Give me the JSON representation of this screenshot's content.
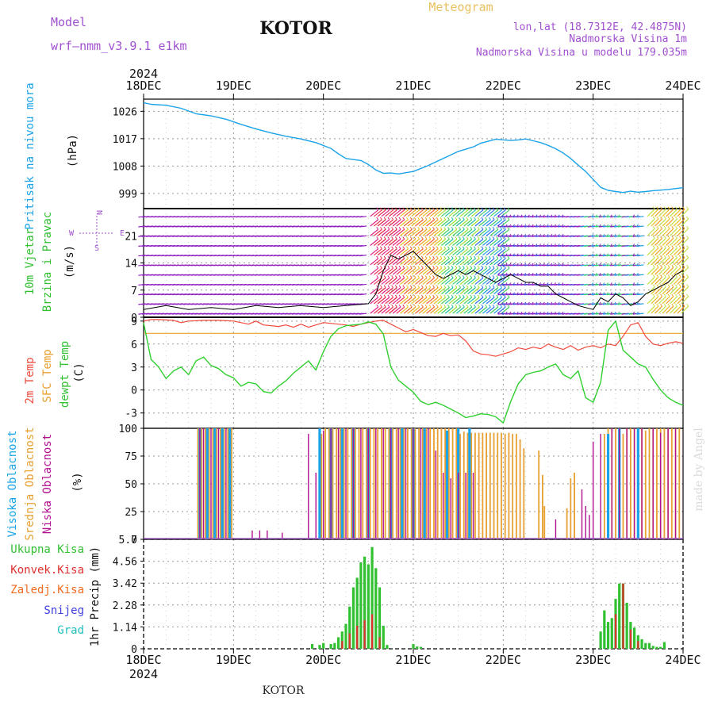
{
  "header": {
    "model_label": "Model",
    "model_name": "wrf—nmm_v3.9.1 e1km",
    "station_title": "KOTOR",
    "meteogram_label": "Meteogram",
    "lonlat": "lon,lat (18.7312E, 42.4875N)",
    "elevation": "Nadmorska Visina 1m",
    "model_elevation": "Nadmorska Visina u modelu 179.035m",
    "credit": "made by Angel",
    "footer_station": "KOTOR"
  },
  "time_axis": {
    "year": "2024",
    "ticks": [
      "18DEC",
      "19DEC",
      "20DEC",
      "21DEC",
      "22DEC",
      "23DEC",
      "24DEC"
    ]
  },
  "colors": {
    "pressure": "#1aa3e8",
    "temp2m": "#f04a3c",
    "sfc_temp": "#e8a030",
    "dewpt": "#30d030",
    "high_cloud": "#1aa3e8",
    "mid_cloud": "#e8a030",
    "low_cloud": "#b01090",
    "total_precip": "#30c030",
    "conv_precip": "#e03030",
    "frz_precip": "#f06a20",
    "snow": "#4040e0",
    "graupel": "#20c0c0"
  },
  "compass": {
    "n": "N",
    "s": "S",
    "e": "E",
    "w": "W"
  },
  "chart_data": [
    {
      "type": "line",
      "panel": "pressure",
      "ylabel": "Pritisak na nivou mora",
      "unit": "(hPa)",
      "yticks": [
        "1026",
        "1017",
        "1008",
        "999"
      ],
      "ylim": [
        994,
        1030
      ],
      "xlim": [
        0,
        144
      ],
      "series": [
        {
          "name": "Pritisak na nivou mora",
          "x": [
            0,
            2,
            6,
            10,
            14,
            18,
            22,
            26,
            30,
            34,
            38,
            42,
            46,
            50,
            52,
            54,
            58,
            60,
            62,
            64,
            66,
            68,
            72,
            76,
            80,
            84,
            88,
            90,
            94,
            98,
            100,
            102,
            104,
            106,
            108,
            110,
            112,
            114,
            116,
            118,
            120,
            122,
            124,
            126,
            128,
            130,
            132,
            134,
            136,
            140,
            144
          ],
          "y": [
            1028.8,
            1028.3,
            1028,
            1027,
            1025.2,
            1024.5,
            1023.4,
            1021.7,
            1020.2,
            1018.9,
            1017.8,
            1016.9,
            1015.7,
            1013.8,
            1012,
            1010.5,
            1009.8,
            1008.5,
            1006.7,
            1005.6,
            1005.7,
            1005.4,
            1006.2,
            1008.2,
            1010.5,
            1012.8,
            1014.3,
            1015.5,
            1016.8,
            1016.4,
            1016.6,
            1016.9,
            1016.3,
            1015.7,
            1014.8,
            1013.7,
            1012.3,
            1010.5,
            1008.3,
            1006.2,
            1003.6,
            1001,
            1000,
            999.6,
            999.3,
            999.7,
            999.4,
            999.6,
            999.9,
            1000.3,
            1000.9
          ]
        }
      ]
    },
    {
      "type": "line",
      "panel": "wind",
      "ylabel": "10m Vjetar Brzina i Pravac",
      "unit": "(m/s)",
      "yticks": [
        "0",
        "7",
        "14",
        "21"
      ],
      "ylim": [
        0,
        28
      ],
      "xlim": [
        0,
        144
      ],
      "series": [
        {
          "name": "10m Vjetar",
          "x": [
            0,
            6,
            12,
            18,
            24,
            30,
            36,
            42,
            48,
            54,
            60,
            62,
            64,
            66,
            68,
            70,
            72,
            74,
            76,
            78,
            80,
            82,
            84,
            86,
            88,
            90,
            92,
            94,
            96,
            98,
            100,
            102,
            104,
            106,
            108,
            110,
            112,
            114,
            116,
            118,
            120,
            122,
            124,
            126,
            128,
            130,
            132,
            134,
            136,
            138,
            140,
            142,
            144
          ],
          "y": [
            2,
            3,
            2,
            2.5,
            2,
            3,
            2.5,
            3,
            2.5,
            3,
            3.5,
            6,
            12,
            16,
            15,
            16,
            17,
            15,
            13,
            11,
            10,
            11,
            12,
            11,
            12,
            11,
            10,
            9,
            10,
            11,
            10,
            9,
            9,
            8,
            8,
            6,
            5,
            4,
            3,
            2.5,
            2,
            5,
            4,
            6,
            5,
            3,
            4,
            6,
            7,
            8,
            9,
            11,
            12
          ]
        }
      ]
    },
    {
      "type": "line",
      "panel": "temperature",
      "ylabel": "2m Temp / SFC Temp / dewpt Temp",
      "unit": "(C)",
      "yticks": [
        "-3",
        "0",
        "3",
        "6",
        "9"
      ],
      "ylim": [
        -5,
        9.5
      ],
      "xlim": [
        0,
        144
      ],
      "series": [
        {
          "name": "2m Temp",
          "x": [
            0,
            2,
            4,
            8,
            10,
            12,
            16,
            20,
            24,
            28,
            30,
            32,
            36,
            38,
            40,
            42,
            44,
            46,
            48,
            50,
            52,
            54,
            56,
            58,
            60,
            62,
            64,
            66,
            68,
            70,
            72,
            74,
            76,
            78,
            80,
            82,
            84,
            86,
            88,
            90,
            92,
            94,
            96,
            98,
            100,
            102,
            104,
            106,
            108,
            110,
            112,
            114,
            116,
            118,
            120,
            122,
            124,
            126,
            128,
            130,
            132,
            134,
            136,
            138,
            140,
            142,
            144
          ],
          "y": [
            9,
            9.2,
            9.2,
            9.1,
            8.8,
            9,
            9.1,
            9.1,
            9,
            8.6,
            9,
            8.5,
            8.3,
            8.5,
            8.2,
            8.6,
            8.2,
            8.5,
            8.8,
            8.7,
            8.6,
            8.5,
            8.3,
            8.6,
            8.8,
            9,
            9.1,
            8.6,
            8.1,
            7.6,
            7.9,
            7.5,
            7.1,
            7,
            7.4,
            7.1,
            7.2,
            6.4,
            5.1,
            4.7,
            4.6,
            4.4,
            4.7,
            5,
            5.5,
            5.3,
            5.6,
            5.4,
            6,
            5.6,
            5.3,
            5.8,
            5.2,
            5.6,
            5.8,
            5.5,
            6,
            5.8,
            7,
            8.5,
            8.8,
            7,
            6,
            5.8,
            6.1,
            6.3,
            6.1
          ]
        },
        {
          "name": "SFC Temp",
          "x": [
            0,
            144
          ],
          "y": [
            7.4,
            7.4
          ]
        },
        {
          "name": "dewpt Temp",
          "x": [
            0,
            2,
            4,
            6,
            8,
            10,
            12,
            14,
            16,
            18,
            20,
            22,
            24,
            26,
            28,
            30,
            32,
            34,
            36,
            38,
            40,
            42,
            44,
            46,
            48,
            50,
            52,
            54,
            56,
            58,
            60,
            62,
            64,
            66,
            68,
            70,
            72,
            74,
            76,
            78,
            80,
            82,
            84,
            86,
            88,
            90,
            92,
            94,
            96,
            98,
            100,
            102,
            104,
            106,
            108,
            110,
            112,
            114,
            116,
            118,
            120,
            122,
            124,
            126,
            128,
            130,
            132,
            134,
            136,
            138,
            140,
            142,
            144
          ],
          "y": [
            8.8,
            4,
            3,
            1.5,
            2.5,
            3,
            2,
            3.8,
            4.3,
            3.2,
            2.8,
            2,
            1.6,
            0.5,
            1,
            0.8,
            -0.2,
            -0.4,
            0.5,
            1.2,
            2.2,
            3,
            3.8,
            2.6,
            5,
            7,
            8,
            8.4,
            8.5,
            8.6,
            8.9,
            8.6,
            7.3,
            3,
            1.3,
            0.5,
            -0.3,
            -1.5,
            -1.9,
            -1.6,
            -2,
            -2.5,
            -3,
            -3.6,
            -3.4,
            -3.1,
            -3.2,
            -3.5,
            -4.3,
            -1.5,
            0.8,
            2,
            2.3,
            2.5,
            3,
            3.4,
            2,
            1.5,
            2.5,
            -1,
            -1.6,
            1,
            7.8,
            9,
            5.2,
            4.3,
            3.4,
            3,
            1.4,
            0,
            -1,
            -1.6,
            -2
          ]
        }
      ]
    },
    {
      "type": "bar",
      "panel": "cloud",
      "ylabel": "Visoka Oblacnost / Srednja Oblacnost / Niska Oblacnost",
      "unit": "(%)",
      "yticks": [
        "0",
        "25",
        "50",
        "75",
        "100"
      ],
      "ylim": [
        0,
        100
      ],
      "xlim": [
        0,
        144
      ],
      "series": [
        {
          "name": "Visoka Oblacnost",
          "x": [
            15,
            17,
            19,
            21,
            23,
            47,
            50,
            53,
            56,
            60,
            66,
            69,
            72,
            75,
            81,
            84,
            87,
            124,
            127,
            132
          ],
          "values": [
            100,
            100,
            100,
            100,
            100,
            100,
            100,
            100,
            100,
            100,
            100,
            100,
            100,
            100,
            98,
            100,
            100,
            95,
            100,
            100
          ]
        },
        {
          "name": "Srednja Oblacnost",
          "x": [
            14.5,
            15.5,
            16.5,
            17.5,
            18.5,
            19.5,
            20.5,
            21.5,
            22.5,
            23.5,
            47.5,
            48.5,
            49.5,
            50.5,
            51.5,
            52.5,
            53.5,
            54.5,
            55.5,
            56.5,
            57.5,
            58.5,
            59.5,
            60.5,
            61.5,
            62.5,
            63.5,
            64.5,
            65.5,
            66.5,
            67.5,
            68.5,
            69.5,
            70.5,
            71.5,
            72.5,
            73.5,
            74.5,
            75.5,
            76.5,
            77.5,
            78.5,
            79.5,
            80.5,
            81.5,
            82.5,
            83.5,
            84.5,
            85.5,
            86.5,
            87.5,
            88.5,
            89.5,
            90.5,
            91.5,
            92.5,
            93.5,
            94.5,
            95.5,
            96.5,
            97.5,
            98.5,
            99.5,
            100.5,
            101.5,
            105.5,
            106.5,
            107,
            113,
            114,
            115,
            123,
            124,
            125,
            126,
            127,
            128,
            129,
            130,
            131,
            132,
            133,
            134,
            135,
            136,
            137,
            138,
            139,
            140,
            141,
            142,
            143
          ],
          "values": [
            100,
            100,
            100,
            100,
            100,
            100,
            100,
            100,
            100,
            100,
            95,
            100,
            100,
            100,
            100,
            100,
            100,
            100,
            100,
            100,
            100,
            100,
            100,
            100,
            100,
            100,
            100,
            100,
            100,
            100,
            100,
            100,
            100,
            100,
            100,
            100,
            100,
            100,
            100,
            100,
            100,
            100,
            100,
            100,
            100,
            100,
            100,
            95,
            97,
            96,
            96,
            96,
            96,
            96,
            96,
            96,
            96,
            96,
            96,
            95,
            96,
            95,
            95,
            90,
            82,
            80,
            58,
            30,
            28,
            55,
            60,
            95,
            100,
            100,
            100,
            100,
            95,
            100,
            100,
            100,
            100,
            100,
            98,
            100,
            100,
            100,
            100,
            100,
            100,
            100,
            100,
            100
          ]
        },
        {
          "name": "Niska Oblacnost",
          "x": [
            15,
            16,
            18,
            20,
            22,
            29,
            31,
            33,
            37,
            44,
            46,
            48,
            50,
            52,
            54,
            56,
            58,
            60,
            62,
            64,
            66,
            68,
            70,
            72,
            74,
            76,
            78,
            80,
            82,
            84,
            86,
            88,
            110,
            117,
            118,
            119,
            120,
            122,
            125,
            127,
            129,
            131,
            133,
            136,
            138,
            140,
            142
          ],
          "values": [
            100,
            100,
            100,
            100,
            100,
            8,
            8,
            8,
            6,
            95,
            60,
            98,
            100,
            100,
            100,
            100,
            100,
            100,
            100,
            100,
            100,
            100,
            100,
            100,
            100,
            100,
            80,
            60,
            55,
            60,
            60,
            60,
            18,
            45,
            30,
            22,
            88,
            95,
            100,
            100,
            100,
            100,
            100,
            100,
            96,
            100,
            100
          ]
        }
      ]
    },
    {
      "type": "bar",
      "panel": "precip",
      "ylabel": "1hr Precip",
      "unit": "(mm)",
      "yticks": [
        "0",
        "1.14",
        "2.28",
        "3.42",
        "4.56",
        "5.7"
      ],
      "ylim": [
        0,
        5.7
      ],
      "xlim": [
        0,
        144
      ],
      "series": [
        {
          "name": "Ukupna Kisa",
          "x": [
            45,
            47,
            48,
            50,
            51,
            52,
            53,
            54,
            55,
            56,
            57,
            58,
            59,
            60,
            61,
            62,
            63,
            64,
            65,
            72,
            73,
            74,
            122,
            123,
            124,
            125,
            126,
            127,
            128,
            129,
            130,
            131,
            132,
            133,
            134,
            135,
            136,
            137,
            138,
            139
          ],
          "values": [
            0.25,
            0.2,
            0.3,
            0.25,
            0.3,
            0.6,
            0.9,
            1.3,
            2.2,
            3.2,
            3.7,
            4.5,
            4.8,
            4.4,
            5.3,
            4.2,
            3.2,
            1.2,
            0.2,
            0.25,
            0.12,
            0.1,
            0.9,
            2.0,
            1.4,
            1.6,
            2.6,
            3.4,
            3.4,
            2.4,
            1.4,
            1.1,
            0.7,
            0.5,
            0.3,
            0.3,
            0.15,
            0.1,
            0.1,
            0.35
          ]
        },
        {
          "name": "Konvek.Kisa",
          "x": [
            53,
            55,
            57,
            59,
            61,
            63,
            126,
            128,
            130,
            132
          ],
          "values": [
            0.4,
            0.8,
            1.2,
            1.5,
            1.8,
            0.6,
            1.8,
            3.4,
            1.0,
            0.4
          ]
        },
        {
          "name": "Zaledj.Kisa",
          "x": [],
          "values": []
        },
        {
          "name": "Snijeg",
          "x": [],
          "values": []
        },
        {
          "name": "Grad",
          "x": [],
          "values": []
        }
      ]
    }
  ]
}
